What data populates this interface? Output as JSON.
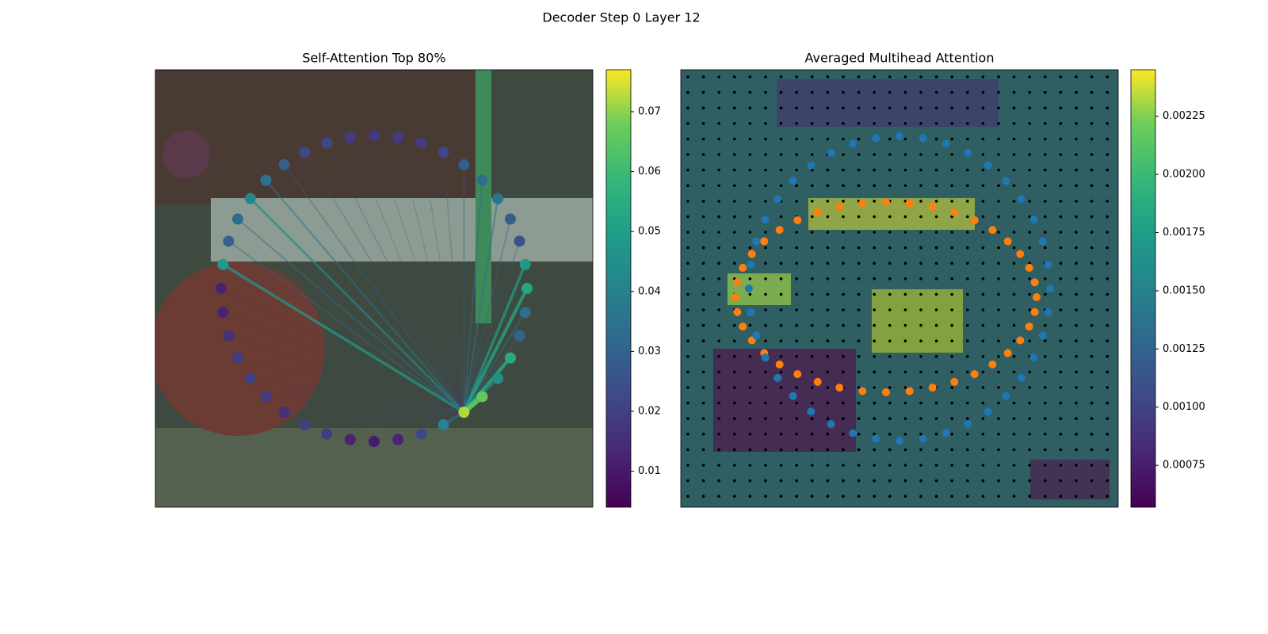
{
  "chart_data": {
    "type": "attention-figure",
    "title": "Decoder Step 0 Layer 12",
    "cmap": "viridis",
    "panels": [
      {
        "title": "Self-Attention Top 80%",
        "values": [
          0.018,
          0.018,
          0.019,
          0.022,
          0.028,
          0.033,
          0.035,
          0.028,
          0.025,
          0.048,
          0.052,
          0.034,
          0.03,
          0.054,
          0.044,
          0.066,
          0.072,
          0.04,
          0.022,
          0.012,
          0.01,
          0.012,
          0.018,
          0.02,
          0.015,
          0.018,
          0.02,
          0.018,
          0.015,
          0.012,
          0.012,
          0.048,
          0.03,
          0.032,
          0.042,
          0.035,
          0.028,
          0.022,
          0.022,
          0.018
        ],
        "clim": [
          0.004,
          0.077
        ],
        "cticks": [
          0.01,
          0.02,
          0.03,
          0.04,
          0.05,
          0.06,
          0.07
        ]
      },
      {
        "title": "Averaged Multihead Attention",
        "clim": [
          0.00057,
          0.00245
        ],
        "cticks": [
          {
            "value": 0.00075,
            "label": "0.00075"
          },
          {
            "value": 0.001,
            "label": "0.00100"
          },
          0.00125,
          {
            "value": 0.0015,
            "label": "0.00150"
          },
          0.00175,
          {
            "value": 0.002,
            "label": "0.00200"
          },
          0.00225
        ]
      }
    ]
  }
}
